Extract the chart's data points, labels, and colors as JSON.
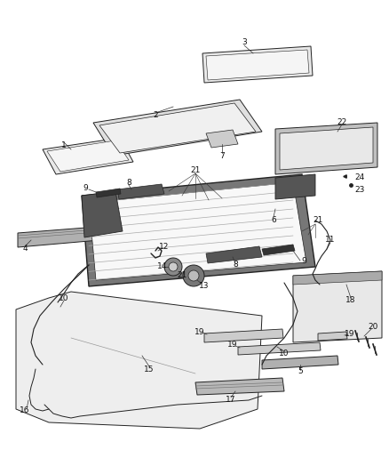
{
  "bg_color": "#ffffff",
  "fig_width": 4.38,
  "fig_height": 5.33,
  "dpi": 100,
  "line_color": "#222222",
  "fill_light": "#f0f0f0",
  "fill_mid": "#d8d8d8",
  "fill_dark": "#888888"
}
